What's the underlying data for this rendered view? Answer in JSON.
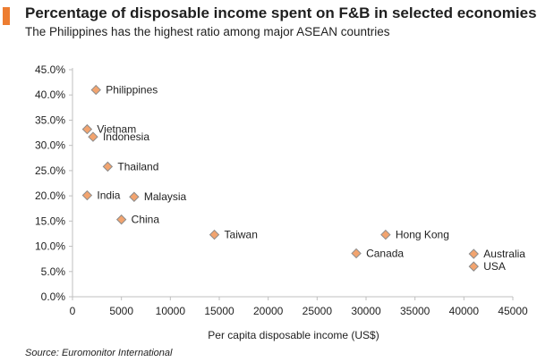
{
  "title": "Percentage of disposable income spent on F&B in selected economies",
  "subtitle": "The Philippines has the highest ratio among major ASEAN countries",
  "source": "Source: Euromonitor International",
  "colors": {
    "accent": "#ed7d31",
    "marker_fill": "#f2a46f",
    "marker_stroke": "#8c8c8c",
    "axis": "#bfbfbf",
    "text": "#1f1f1f"
  },
  "chart_data": {
    "type": "scatter",
    "title": "Percentage of disposable income spent on F&B in selected economies",
    "subtitle": "The Philippines has the highest ratio among major ASEAN countries",
    "xlabel": "Per capita disposable income (US$)",
    "ylabel": "",
    "xlim": [
      0,
      45000
    ],
    "ylim": [
      0,
      45
    ],
    "x_ticks": [
      0,
      5000,
      10000,
      15000,
      20000,
      25000,
      30000,
      35000,
      40000,
      45000
    ],
    "y_ticks": [
      0,
      5,
      10,
      15,
      20,
      25,
      30,
      35,
      40,
      45
    ],
    "x_tick_labels": [
      "0",
      "5000",
      "10000",
      "15000",
      "20000",
      "25000",
      "30000",
      "35000",
      "40000",
      "45000"
    ],
    "y_tick_labels": [
      "0.0%",
      "5.0%",
      "10.0%",
      "15.0%",
      "20.0%",
      "25.0%",
      "30.0%",
      "35.0%",
      "40.0%",
      "45.0%"
    ],
    "grid": false,
    "legend": "none",
    "marker": "diamond",
    "points": [
      {
        "label": "Philippines",
        "x": 2400,
        "y": 41.0
      },
      {
        "label": "Vietnam",
        "x": 1500,
        "y": 33.2
      },
      {
        "label": "Indonesia",
        "x": 2100,
        "y": 31.7
      },
      {
        "label": "Thailand",
        "x": 3600,
        "y": 25.8
      },
      {
        "label": "India",
        "x": 1500,
        "y": 20.1
      },
      {
        "label": "Malaysia",
        "x": 6300,
        "y": 19.8
      },
      {
        "label": "China",
        "x": 5000,
        "y": 15.3
      },
      {
        "label": "Taiwan",
        "x": 14500,
        "y": 12.3
      },
      {
        "label": "Hong Kong",
        "x": 32000,
        "y": 12.3
      },
      {
        "label": "Canada",
        "x": 29000,
        "y": 8.6
      },
      {
        "label": "Australia",
        "x": 41000,
        "y": 8.5
      },
      {
        "label": "USA",
        "x": 41000,
        "y": 6.0
      }
    ]
  }
}
